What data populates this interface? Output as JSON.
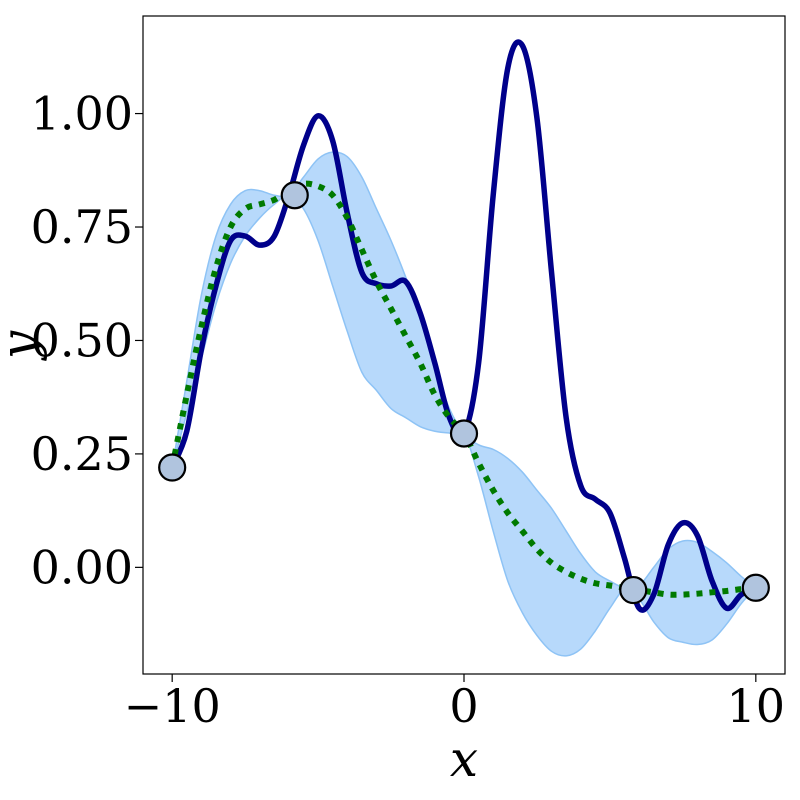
{
  "chart_data": {
    "type": "line",
    "title": "",
    "xlabel": "x",
    "ylabel": "y",
    "xlim": [
      -11,
      11
    ],
    "ylim": [
      -0.235,
      1.215
    ],
    "x_ticks": [
      -10,
      0,
      10
    ],
    "x_tick_labels": [
      "−10",
      "0",
      "10"
    ],
    "y_ticks": [
      0.0,
      0.25,
      0.5,
      0.75,
      1.0
    ],
    "y_tick_labels": [
      "0.00",
      "0.25",
      "0.50",
      "0.75",
      "1.00"
    ],
    "grid": false,
    "legend": "none",
    "colors": {
      "true_function": "#00008b",
      "mean": "#007a00",
      "band_fill": "#b7d9fb",
      "band_edge": "#8ec3f5",
      "observation": "#b0c4de"
    },
    "series": [
      {
        "kind": "true_function",
        "x": [
          -10,
          -9.5,
          -9,
          -8.5,
          -8,
          -7.5,
          -7,
          -6.5,
          -6,
          -5.5,
          -5,
          -4.5,
          -4,
          -3.5,
          -3,
          -2.5,
          -2,
          -1.5,
          -1,
          -0.5,
          0,
          0.5,
          1,
          1.5,
          2,
          2.5,
          3,
          3.5,
          4,
          4.5,
          5,
          5.5,
          6,
          6.5,
          7,
          7.5,
          8,
          8.5,
          9,
          9.5,
          10
        ],
        "y": [
          0.22,
          0.3,
          0.48,
          0.62,
          0.72,
          0.73,
          0.71,
          0.73,
          0.82,
          0.93,
          0.995,
          0.94,
          0.78,
          0.65,
          0.625,
          0.62,
          0.63,
          0.56,
          0.45,
          0.33,
          0.295,
          0.45,
          0.82,
          1.1,
          1.15,
          0.99,
          0.65,
          0.33,
          0.18,
          0.15,
          0.12,
          0.02,
          -0.09,
          -0.06,
          0.05,
          0.098,
          0.07,
          -0.03,
          -0.09,
          -0.06,
          -0.045
        ]
      },
      {
        "kind": "posterior_mean",
        "x": [
          -10,
          -9.5,
          -9,
          -8.5,
          -8,
          -7.5,
          -7,
          -6.5,
          -6,
          -5.5,
          -5,
          -4.5,
          -4,
          -3.5,
          -3,
          -2.5,
          -2,
          -1.5,
          -1,
          -0.5,
          0,
          0.5,
          1,
          1.5,
          2,
          2.5,
          3,
          3.5,
          4,
          4.5,
          5,
          5.5,
          6,
          6.5,
          7,
          7.5,
          8,
          8.5,
          9,
          9.5,
          10
        ],
        "y": [
          0.22,
          0.38,
          0.53,
          0.66,
          0.75,
          0.79,
          0.8,
          0.81,
          0.83,
          0.845,
          0.84,
          0.82,
          0.77,
          0.7,
          0.63,
          0.57,
          0.51,
          0.45,
          0.38,
          0.33,
          0.295,
          0.23,
          0.17,
          0.12,
          0.08,
          0.04,
          0.01,
          -0.01,
          -0.025,
          -0.035,
          -0.04,
          -0.045,
          -0.05,
          -0.055,
          -0.06,
          -0.06,
          -0.058,
          -0.055,
          -0.052,
          -0.048,
          -0.045
        ]
      },
      {
        "kind": "confidence_band",
        "x": [
          -10,
          -9.5,
          -9,
          -8.5,
          -8,
          -7.5,
          -7,
          -6.5,
          -6,
          -5.5,
          -5,
          -4.5,
          -4,
          -3.5,
          -3,
          -2.5,
          -2,
          -1.5,
          -1,
          -0.5,
          0,
          0.5,
          1,
          1.5,
          2,
          2.5,
          3,
          3.5,
          4,
          4.5,
          5,
          5.5,
          6,
          6.5,
          7,
          7.5,
          8,
          8.5,
          9,
          9.5,
          10
        ],
        "lower": [
          0.22,
          0.34,
          0.46,
          0.58,
          0.67,
          0.73,
          0.77,
          0.8,
          0.82,
          0.79,
          0.72,
          0.62,
          0.52,
          0.43,
          0.39,
          0.35,
          0.33,
          0.31,
          0.3,
          0.296,
          0.295,
          0.2,
          0.08,
          -0.03,
          -0.1,
          -0.15,
          -0.185,
          -0.195,
          -0.18,
          -0.14,
          -0.09,
          -0.05,
          -0.07,
          -0.12,
          -0.155,
          -0.165,
          -0.17,
          -0.16,
          -0.125,
          -0.08,
          -0.045
        ],
        "upper": [
          0.22,
          0.41,
          0.6,
          0.73,
          0.8,
          0.83,
          0.83,
          0.82,
          0.82,
          0.86,
          0.9,
          0.915,
          0.905,
          0.86,
          0.79,
          0.72,
          0.64,
          0.55,
          0.44,
          0.35,
          0.295,
          0.27,
          0.26,
          0.24,
          0.21,
          0.17,
          0.13,
          0.08,
          0.03,
          -0.01,
          -0.03,
          -0.045,
          -0.04,
          0.0,
          0.04,
          0.058,
          0.055,
          0.035,
          0.01,
          -0.02,
          -0.045
        ]
      },
      {
        "kind": "observations",
        "x": [
          -10,
          -5.8,
          0,
          5.8,
          10
        ],
        "y": [
          0.22,
          0.82,
          0.295,
          -0.05,
          -0.045
        ]
      }
    ]
  }
}
